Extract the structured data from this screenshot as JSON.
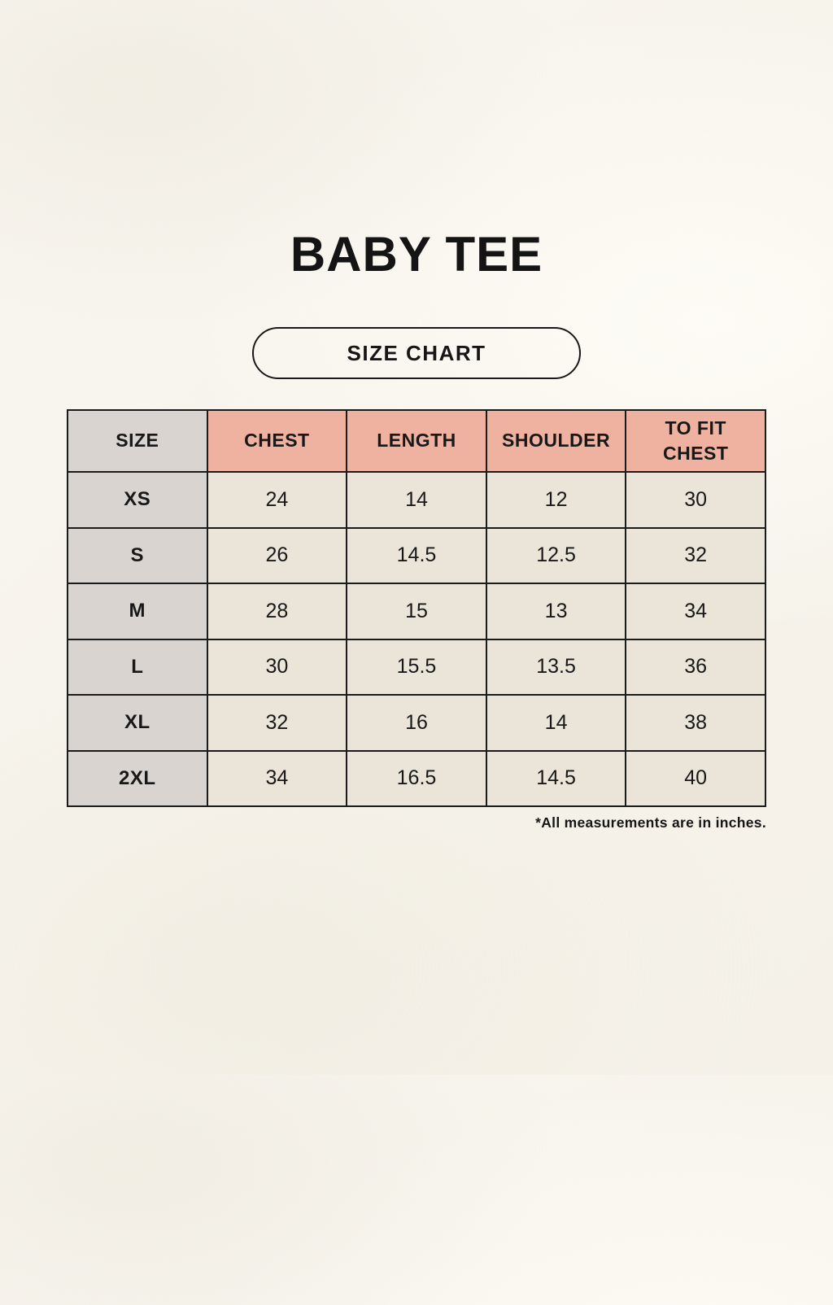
{
  "page": {
    "title": "BABY TEE",
    "size_chart_button_label": "SIZE CHART",
    "footnote": "*All measurements are in inches."
  },
  "chart_data": {
    "type": "table",
    "title": "BABY TEE size chart",
    "unit": "inches",
    "columns": [
      "SIZE",
      "CHEST",
      "LENGTH",
      "SHOULDER",
      "TO FIT CHEST"
    ],
    "rows": [
      [
        "XS",
        "24",
        "14",
        "12",
        "30"
      ],
      [
        "S",
        "26",
        "14.5",
        "12.5",
        "32"
      ],
      [
        "M",
        "28",
        "15",
        "13",
        "34"
      ],
      [
        "L",
        "30",
        "15.5",
        "13.5",
        "36"
      ],
      [
        "XL",
        "32",
        "16",
        "14",
        "38"
      ],
      [
        "2XL",
        "34",
        "16.5",
        "14.5",
        "40"
      ]
    ]
  },
  "colors": {
    "background": "#f7f4ec",
    "header_accent": "#efb2a1",
    "size_column_bg": "#d9d4cf",
    "data_cell_bg": "#eae4d9",
    "border": "#1b1b1b",
    "text": "#141414"
  }
}
